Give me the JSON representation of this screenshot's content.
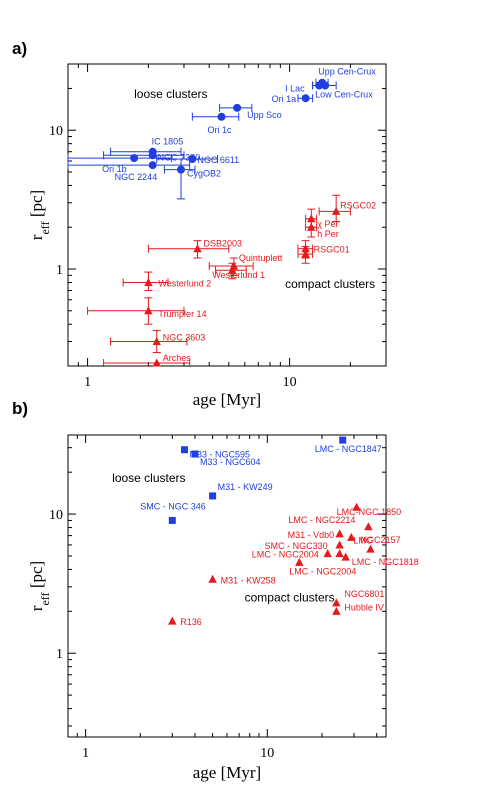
{
  "colors": {
    "blue": "#1f3fe0",
    "red": "#e41a1c",
    "axis": "#000000"
  },
  "chart_data": [
    {
      "panel_label": "a)",
      "type": "scatter",
      "xlabel": "age [Myr]",
      "ylabel_main": "r",
      "ylabel_sub": "eff",
      "ylabel_unit": " [pc]",
      "xscale": "log",
      "yscale": "log",
      "xlim": [
        0.8,
        30
      ],
      "ylim": [
        0.2,
        30
      ],
      "xticks": [
        1,
        10
      ],
      "xticklabels": [
        "1",
        "10"
      ],
      "yticks": [
        1,
        10
      ],
      "yticklabels": [
        "1",
        "10"
      ],
      "annotations": [
        {
          "text": "loose clusters",
          "x": 1.7,
          "y": 17
        },
        {
          "text": "compact clusters",
          "x": 9.5,
          "y": 0.73
        }
      ],
      "series": [
        {
          "group": "loose",
          "marker": "circle",
          "color": "blue",
          "points": [
            {
              "label": "Upp Cen-Crux",
              "x": 14.5,
              "y": 22,
              "xerr": [
                13.5,
                15.5
              ],
              "label_dx": -4,
              "label_dy": -8
            },
            {
              "label": "I Lac",
              "x": 14,
              "y": 21,
              "xerr": [
                13,
                15
              ],
              "label_dx": -34,
              "label_dy": 6
            },
            {
              "label": "Low Cen-Crux",
              "x": 15,
              "y": 21,
              "xerr": [
                13,
                17
              ],
              "label_dx": -10,
              "label_dy": 12
            },
            {
              "label": "Ori 1a",
              "x": 12,
              "y": 17,
              "xerr": [
                11,
                13
              ],
              "label_dx": -34,
              "label_dy": 4
            },
            {
              "label": "Upp Sco",
              "x": 5.5,
              "y": 14.5,
              "xerr": [
                4.5,
                6.5
              ],
              "label_dx": 10,
              "label_dy": 10
            },
            {
              "label": "Ori 1c",
              "x": 4.6,
              "y": 12.5,
              "xerr": [
                3.3,
                5.6
              ],
              "label_dx": -14,
              "label_dy": 16
            },
            {
              "label": "IC 1805",
              "x": 2.1,
              "y": 7,
              "xerr": [
                1.3,
                2.9
              ],
              "label_dx": -1,
              "label_dy": -7
            },
            {
              "label": "NGC 7380",
              "x": 2.1,
              "y": 6.6,
              "xerr": [
                1.2,
                3.0
              ],
              "label_dx": 5,
              "label_dy": 5
            },
            {
              "label": "NGC 6611",
              "x": 3.3,
              "y": 6.2,
              "xerr": [
                2.2,
                4.4
              ],
              "label_dx": 5,
              "label_dy": 4
            },
            {
              "label": "Ori 1b",
              "x": 1.7,
              "y": 6.3,
              "xerr": [
                0.8,
                2.6
              ],
              "label_dx": -32,
              "label_dy": 14
            },
            {
              "label": "NGC 2244",
              "x": 2.1,
              "y": 5.6,
              "xerr": [
                0.8,
                3.2
              ],
              "label_dx": -38,
              "label_dy": 15
            },
            {
              "label": "CygOB2",
              "x": 2.9,
              "y": 5.2,
              "xerr": [
                2.4,
                3.4
              ],
              "yerr": [
                3.2,
                6.2
              ],
              "label_dx": 6,
              "label_dy": 7
            }
          ]
        },
        {
          "group": "compact",
          "marker": "triangle",
          "color": "red",
          "points": [
            {
              "label": "RSGC02",
              "x": 17,
              "y": 2.6,
              "xerr": [
                14,
                20
              ],
              "yerr": [
                2.2,
                3.4
              ],
              "label_dx": 4,
              "label_dy": -3
            },
            {
              "label": "χ Per",
              "x": 12.8,
              "y": 2.3,
              "xerr": [
                12,
                13.6
              ],
              "yerr": [
                2.0,
                2.7
              ],
              "label_dx": 6,
              "label_dy": 8
            },
            {
              "label": "h Per",
              "x": 12.8,
              "y": 2.0,
              "xerr": [
                12,
                13.6
              ],
              "yerr": [
                1.7,
                2.3
              ],
              "label_dx": 6,
              "label_dy": 10
            },
            {
              "label": "RSGC01",
              "x": 12,
              "y": 1.4,
              "xerr": [
                11,
                13
              ],
              "yerr": [
                1.2,
                1.6
              ],
              "label_dx": 8,
              "label_dy": 4
            },
            {
              "label": "",
              "x": 12,
              "y": 1.28,
              "xerr": [
                11,
                13
              ],
              "yerr": [
                1.1,
                1.45
              ],
              "label_dx": 0,
              "label_dy": 0
            },
            {
              "label": "DSB2003",
              "x": 3.5,
              "y": 1.4,
              "xerr": [
                2.0,
                5.0
              ],
              "yerr": [
                1.2,
                1.6
              ],
              "label_dx": 6,
              "label_dy": -2
            },
            {
              "label": "Quintuplett",
              "x": 5.3,
              "y": 1.05,
              "xerr": [
                4.0,
                6.6
              ],
              "yerr": [
                0.9,
                1.2
              ],
              "label_dx": 5,
              "label_dy": -5
            },
            {
              "label": "Westerlund 1",
              "x": 5.2,
              "y": 0.98,
              "xerr": [
                4.3,
                6.1
              ],
              "yerr": [
                0.85,
                1.1
              ],
              "label_dx": -20,
              "label_dy": 8
            },
            {
              "label": "Westerlund 2",
              "x": 2.0,
              "y": 0.8,
              "xerr": [
                1.5,
                2.5
              ],
              "yerr": [
                0.7,
                0.95
              ],
              "label_dx": 10,
              "label_dy": 4
            },
            {
              "label": "Trumpler 14",
              "x": 2.0,
              "y": 0.5,
              "xerr": [
                1.0,
                3.0
              ],
              "yerr": [
                0.4,
                0.62
              ],
              "label_dx": 10,
              "label_dy": 6
            },
            {
              "label": "NGC 3603",
              "x": 2.2,
              "y": 0.3,
              "xerr": [
                1.3,
                3.1
              ],
              "yerr": [
                0.25,
                0.36
              ],
              "label_dx": 6,
              "label_dy": -1
            },
            {
              "label": "Arches",
              "x": 2.2,
              "y": 0.21,
              "xerr": [
                1.2,
                3.2
              ],
              "label_dx": 6,
              "label_dy": -2
            }
          ]
        }
      ]
    },
    {
      "panel_label": "b)",
      "type": "scatter",
      "xlabel": "age [Myr]",
      "ylabel_main": "r",
      "ylabel_sub": "eff",
      "ylabel_unit": " [pc]",
      "xscale": "log",
      "yscale": "log",
      "xlim": [
        0.8,
        45
      ],
      "ylim": [
        0.25,
        37
      ],
      "xticks": [
        1,
        10
      ],
      "xticklabels": [
        "1",
        "10"
      ],
      "yticks": [
        1,
        10
      ],
      "yticklabels": [
        "1",
        "10"
      ],
      "annotations": [
        {
          "text": "loose clusters",
          "x": 1.4,
          "y": 17
        },
        {
          "text": "compact clusters",
          "x": 7.5,
          "y": 2.35
        }
      ],
      "series": [
        {
          "group": "loose",
          "marker": "square",
          "color": "blue",
          "points": [
            {
              "label": "M33 - NGC595",
              "x": 3.5,
              "y": 29,
              "label_dx": 5,
              "label_dy": 8
            },
            {
              "label": "M33 - NGC604",
              "x": 4.0,
              "y": 27,
              "label_dx": 5,
              "label_dy": 11
            },
            {
              "label": "LMC - NGC1847",
              "x": 26,
              "y": 34,
              "label_dx": -28,
              "label_dy": 12
            },
            {
              "label": "M31 - KW249",
              "x": 5.0,
              "y": 13.5,
              "label_dx": 5,
              "label_dy": -6
            },
            {
              "label": "SMC - NGC 346",
              "x": 3.0,
              "y": 9.0,
              "label_dx": -32,
              "label_dy": -11
            }
          ]
        },
        {
          "group": "compact",
          "marker": "triangle",
          "color": "red",
          "points": [
            {
              "label": "LMC-NGC 1850",
              "x": 31,
              "y": 11.2,
              "label_dx": -20,
              "label_dy": 8
            },
            {
              "label": "LMC - NGC2214",
              "x": 36,
              "y": 8.1,
              "label_dx": -80,
              "label_dy": -4
            },
            {
              "label": "M31 - Vdb0",
              "x": 25,
              "y": 7.2,
              "label_dx": -52,
              "label_dy": 4
            },
            {
              "label": "LMC",
              "x": 29,
              "y": 6.8,
              "label_dx": 2,
              "label_dy": 6
            },
            {
              "label": "SMC - NGC330",
              "x": 25,
              "y": 6.0,
              "label_dx": -75,
              "label_dy": 4
            },
            {
              "label": "NGC2157",
              "x": 37,
              "y": 5.6,
              "label_dx": -10,
              "label_dy": -6
            },
            {
              "label": "LMC - NGC2004",
              "x": 21.5,
              "y": 5.2,
              "label_dx": -76,
              "label_dy": 4
            },
            {
              "label": "",
              "x": 25,
              "y": 5.2,
              "label_dx": 0,
              "label_dy": 0
            },
            {
              "label": "LMC - NGC1818",
              "x": 27,
              "y": 4.9,
              "label_dx": 6,
              "label_dy": 8
            },
            {
              "label": "LMC - NGC2004",
              "x": 15,
              "y": 4.5,
              "label_dx": -10,
              "label_dy": 12
            },
            {
              "label": "M31 - KW258",
              "x": 5.0,
              "y": 3.4,
              "label_dx": 8,
              "label_dy": 4
            },
            {
              "label": "NGC6801",
              "x": 24,
              "y": 2.3,
              "label_dx": 8,
              "label_dy": -6
            },
            {
              "label": "Hubble IV",
              "x": 24,
              "y": 2.0,
              "label_dx": 8,
              "label_dy": -1
            },
            {
              "label": "R136",
              "x": 3.0,
              "y": 1.7,
              "label_dx": 8,
              "label_dy": 4
            }
          ]
        }
      ]
    }
  ]
}
